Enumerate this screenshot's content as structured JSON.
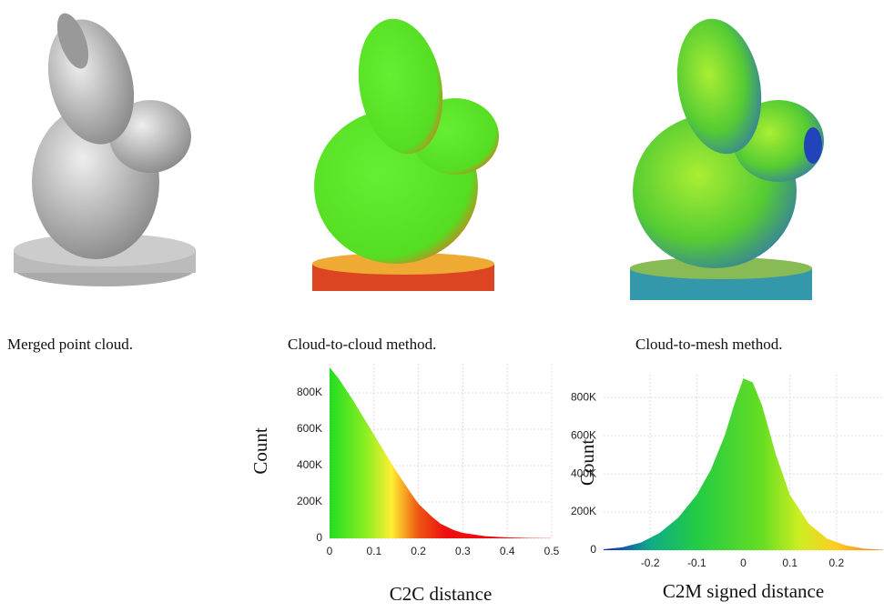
{
  "captions": [
    "Merged point cloud.",
    "Cloud-to-cloud method.",
    "Cloud-to-mesh method."
  ],
  "chart_data": [
    {
      "type": "area",
      "x_label": "C2C distance",
      "y_label": "Count",
      "x": [
        0,
        0.02,
        0.05,
        0.08,
        0.1,
        0.13,
        0.15,
        0.18,
        0.2,
        0.23,
        0.25,
        0.28,
        0.3,
        0.35,
        0.4,
        0.45,
        0.5
      ],
      "values": [
        940000,
        880000,
        770000,
        650000,
        570000,
        450000,
        370000,
        260000,
        190000,
        120000,
        80000,
        45000,
        30000,
        12000,
        5000,
        2000,
        500
      ],
      "xlim": [
        0,
        0.5
      ],
      "ylim": [
        0,
        960000
      ],
      "xticks": [
        0,
        0.1,
        0.2,
        0.3,
        0.4,
        0.5
      ],
      "yticks": [
        0,
        {
          "value": 200000,
          "label": "200K"
        },
        {
          "value": 400000,
          "label": "400K"
        },
        {
          "value": 600000,
          "label": "600K"
        },
        {
          "value": 800000,
          "label": "800K"
        }
      ],
      "grid": true,
      "color_stops": [
        {
          "at": 0,
          "color": "#22dd22"
        },
        {
          "at": 0.08,
          "color": "#88ee22"
        },
        {
          "at": 0.14,
          "color": "#ffee33"
        },
        {
          "at": 0.2,
          "color": "#ee5511"
        },
        {
          "at": 0.26,
          "color": "#ee1111"
        },
        {
          "at": 0.5,
          "color": "#ee0000"
        }
      ]
    },
    {
      "type": "area",
      "x_label": "C2M signed distance",
      "y_label": "Count",
      "x": [
        -0.3,
        -0.26,
        -0.22,
        -0.18,
        -0.14,
        -0.1,
        -0.07,
        -0.04,
        -0.02,
        0,
        0.02,
        0.04,
        0.07,
        0.1,
        0.14,
        0.18,
        0.22,
        0.26,
        0.3
      ],
      "values": [
        5000,
        15000,
        40000,
        90000,
        170000,
        290000,
        420000,
        600000,
        760000,
        900000,
        880000,
        760000,
        500000,
        290000,
        140000,
        60000,
        25000,
        8000,
        2000
      ],
      "xlim": [
        -0.3,
        0.3
      ],
      "ylim": [
        0,
        920000
      ],
      "xticks": [
        -0.2,
        -0.1,
        0,
        0.1,
        0.2
      ],
      "yticks": [
        0,
        {
          "value": 200000,
          "label": "200K"
        },
        {
          "value": 400000,
          "label": "400K"
        },
        {
          "value": 600000,
          "label": "600K"
        },
        {
          "value": 800000,
          "label": "800K"
        }
      ],
      "grid": true,
      "color_stops": [
        {
          "at": -0.3,
          "color": "#1122cc"
        },
        {
          "at": -0.2,
          "color": "#11aa88"
        },
        {
          "at": -0.1,
          "color": "#22cc44"
        },
        {
          "at": 0.04,
          "color": "#66dd22"
        },
        {
          "at": 0.12,
          "color": "#ccee22"
        },
        {
          "at": 0.2,
          "color": "#ffcc22"
        },
        {
          "at": 0.3,
          "color": "#ee7711"
        }
      ]
    }
  ]
}
